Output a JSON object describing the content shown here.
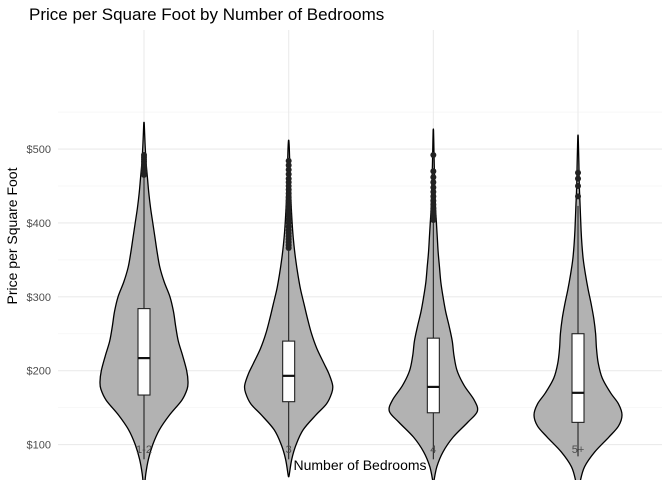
{
  "chart_data": {
    "type": "violin",
    "title": "Price per Square Foot by Number of Bedrooms",
    "xlabel": "Number of Bedrooms",
    "ylabel": "Price per Square Foot",
    "categories": [
      "1-2",
      "3",
      "4",
      "5+"
    ],
    "ylim": [
      30,
      560
    ],
    "y_ticks": [
      100,
      200,
      300,
      400,
      500
    ],
    "y_tick_labels": [
      "$100",
      "$200",
      "$300",
      "$400",
      "$500"
    ],
    "grid": true,
    "legend": "none",
    "colors": {
      "violin_fill": "#b2b2b2",
      "violin_stroke": "#000000",
      "box_fill": "#ffffff",
      "outlier": "#222222",
      "grid_major": "#ebebeb",
      "grid_minor": "#f5f5f5",
      "text": "#1a1a1a",
      "tick_text": "#4d4d4d"
    },
    "groups": [
      {
        "name": "1-2",
        "violin_min": 42,
        "violin_max": 535,
        "whisker_low": 80,
        "q1": 167,
        "median": 217,
        "q3": 284,
        "whisker_high": 462,
        "outliers": [
          465,
          469,
          473,
          476,
          479,
          483,
          486,
          489,
          492
        ],
        "density": [
          [
            42,
            0.01
          ],
          [
            60,
            0.04
          ],
          [
            80,
            0.1
          ],
          [
            100,
            0.2
          ],
          [
            120,
            0.35
          ],
          [
            140,
            0.58
          ],
          [
            160,
            0.86
          ],
          [
            175,
            0.98
          ],
          [
            185,
            1.0
          ],
          [
            200,
            0.97
          ],
          [
            220,
            0.88
          ],
          [
            240,
            0.78
          ],
          [
            260,
            0.72
          ],
          [
            280,
            0.67
          ],
          [
            300,
            0.59
          ],
          [
            320,
            0.46
          ],
          [
            340,
            0.36
          ],
          [
            360,
            0.3
          ],
          [
            380,
            0.25
          ],
          [
            400,
            0.2
          ],
          [
            420,
            0.15
          ],
          [
            440,
            0.11
          ],
          [
            460,
            0.08
          ],
          [
            480,
            0.05
          ],
          [
            500,
            0.03
          ],
          [
            520,
            0.015
          ],
          [
            535,
            0.005
          ]
        ]
      },
      {
        "name": "3",
        "violin_min": 58,
        "violin_max": 511,
        "whisker_low": 80,
        "q1": 158,
        "median": 193,
        "q3": 240,
        "whisker_high": 362,
        "outliers": [
          366,
          370,
          374,
          378,
          382,
          386,
          390,
          395,
          400,
          405,
          410,
          415,
          420,
          425,
          430,
          435,
          440,
          445,
          450,
          455,
          460,
          466,
          472,
          478,
          484
        ],
        "density": [
          [
            58,
            0.01
          ],
          [
            80,
            0.07
          ],
          [
            100,
            0.17
          ],
          [
            120,
            0.33
          ],
          [
            140,
            0.62
          ],
          [
            155,
            0.86
          ],
          [
            170,
            0.98
          ],
          [
            180,
            1.0
          ],
          [
            195,
            0.92
          ],
          [
            210,
            0.8
          ],
          [
            230,
            0.64
          ],
          [
            250,
            0.52
          ],
          [
            270,
            0.43
          ],
          [
            290,
            0.35
          ],
          [
            310,
            0.27
          ],
          [
            330,
            0.21
          ],
          [
            350,
            0.16
          ],
          [
            370,
            0.12
          ],
          [
            390,
            0.09
          ],
          [
            420,
            0.06
          ],
          [
            450,
            0.04
          ],
          [
            480,
            0.025
          ],
          [
            500,
            0.015
          ],
          [
            511,
            0.005
          ]
        ]
      },
      {
        "name": "4",
        "violin_min": 50,
        "violin_max": 526,
        "whisker_low": 80,
        "q1": 143,
        "median": 178,
        "q3": 244,
        "whisker_high": 402,
        "outliers": [
          404,
          408,
          412,
          416,
          420,
          425,
          430,
          436,
          442,
          448,
          455,
          462,
          470,
          492
        ],
        "density": [
          [
            50,
            0.01
          ],
          [
            70,
            0.08
          ],
          [
            90,
            0.22
          ],
          [
            110,
            0.45
          ],
          [
            130,
            0.78
          ],
          [
            145,
            1.0
          ],
          [
            160,
            0.93
          ],
          [
            180,
            0.7
          ],
          [
            200,
            0.54
          ],
          [
            220,
            0.47
          ],
          [
            240,
            0.43
          ],
          [
            260,
            0.36
          ],
          [
            280,
            0.28
          ],
          [
            300,
            0.22
          ],
          [
            320,
            0.17
          ],
          [
            340,
            0.14
          ],
          [
            360,
            0.11
          ],
          [
            380,
            0.09
          ],
          [
            400,
            0.07
          ],
          [
            420,
            0.05
          ],
          [
            450,
            0.035
          ],
          [
            480,
            0.02
          ],
          [
            510,
            0.01
          ],
          [
            526,
            0.004
          ]
        ]
      },
      {
        "name": "5+",
        "violin_min": 33,
        "violin_max": 518,
        "whisker_low": 84,
        "q1": 130,
        "median": 170,
        "q3": 250,
        "whisker_high": 423,
        "outliers": [
          436,
          450,
          460,
          468
        ],
        "density": [
          [
            33,
            0.01
          ],
          [
            50,
            0.05
          ],
          [
            70,
            0.15
          ],
          [
            90,
            0.38
          ],
          [
            110,
            0.7
          ],
          [
            125,
            0.92
          ],
          [
            140,
            1.0
          ],
          [
            155,
            0.92
          ],
          [
            170,
            0.74
          ],
          [
            190,
            0.55
          ],
          [
            210,
            0.46
          ],
          [
            230,
            0.42
          ],
          [
            250,
            0.4
          ],
          [
            270,
            0.36
          ],
          [
            290,
            0.3
          ],
          [
            310,
            0.23
          ],
          [
            330,
            0.17
          ],
          [
            350,
            0.12
          ],
          [
            370,
            0.09
          ],
          [
            390,
            0.07
          ],
          [
            420,
            0.05
          ],
          [
            450,
            0.03
          ],
          [
            480,
            0.02
          ],
          [
            505,
            0.01
          ],
          [
            518,
            0.004
          ]
        ]
      }
    ]
  }
}
